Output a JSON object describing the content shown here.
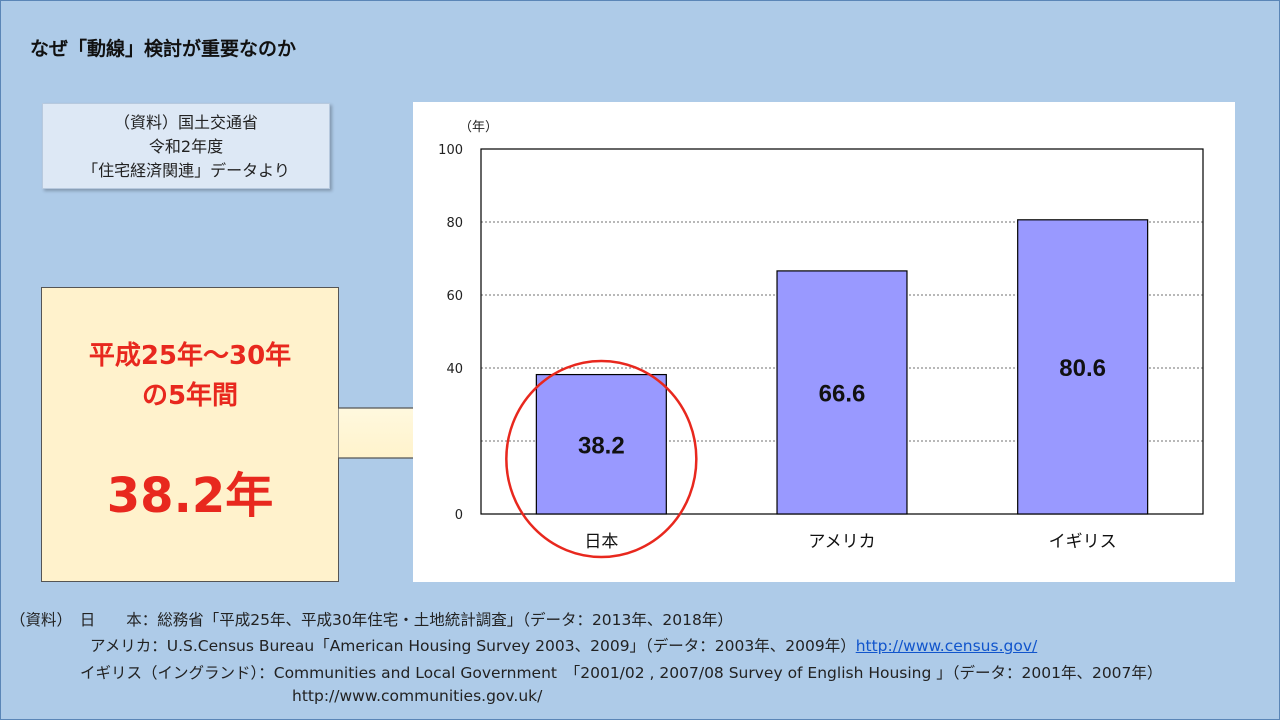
{
  "title": "なぜ「動線」検討が重要なのか",
  "source_box": {
    "lines": [
      "（資料）国土交通省",
      "令和2年度",
      "「住宅経済関連」データより"
    ]
  },
  "highlight": {
    "period_line1": "平成25年～30年",
    "period_line2": "の5年間",
    "value": "38.2年"
  },
  "chart_data": {
    "type": "bar",
    "categories": [
      "日本",
      "アメリカ",
      "イギリス"
    ],
    "values": [
      38.2,
      66.6,
      80.6
    ],
    "value_labels": [
      "38.2",
      "66.6",
      "80.6"
    ],
    "unit_label": "（年）",
    "ylim": [
      0,
      100
    ],
    "yticks": [
      0,
      20,
      40,
      60,
      80,
      100
    ],
    "ytick_labels": [
      "0",
      "",
      "40",
      "60",
      "80",
      "100"
    ],
    "grid": true,
    "bar_color": "#9999ff",
    "highlight_circle_category": "日本",
    "highlight_circle_color": "#e8281e"
  },
  "footnotes": {
    "line1": "（資料）　日　　本：総務省「平成25年、平成30年住宅・土地統計調査」（データ：2013年、2018年）",
    "line2_text": "アメリカ：U.S.Census  Bureau「American  Housing Survey 2003、2009」（データ：2003年、2009年）",
    "line2_link": "http://www.census.gov/",
    "line3": "イギリス（イングランド）：Communities  and Local Government　「2001/02 , 2007/08 Survey of English Housing 」（データ：2001年、2007年）",
    "line4": "http://www.communities.gov.uk/"
  }
}
